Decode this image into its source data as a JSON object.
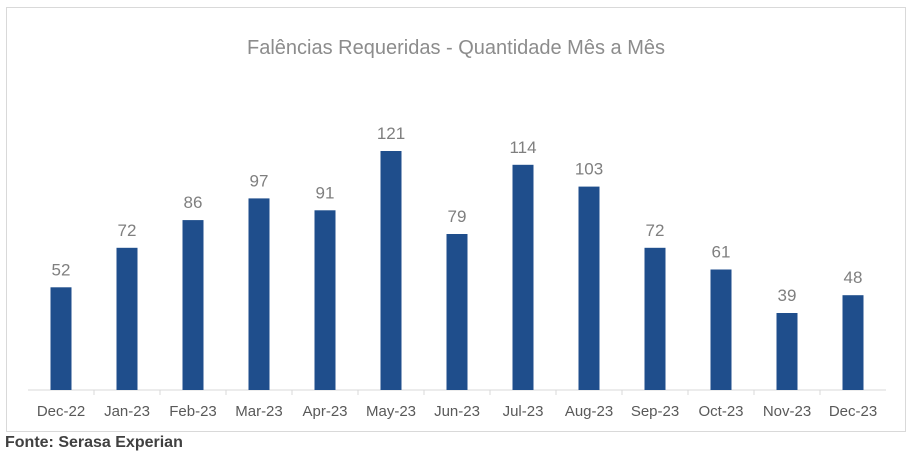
{
  "chart_data": {
    "type": "bar",
    "title": "Falências Requeridas - Quantidade Mês a Mês",
    "categories": [
      "Dec-22",
      "Jan-23",
      "Feb-23",
      "Mar-23",
      "Apr-23",
      "May-23",
      "Jun-23",
      "Jul-23",
      "Aug-23",
      "Sep-23",
      "Oct-23",
      "Nov-23",
      "Dec-23"
    ],
    "values": [
      52,
      72,
      86,
      97,
      91,
      121,
      79,
      114,
      103,
      72,
      61,
      39,
      48
    ],
    "xlabel": "",
    "ylabel": "",
    "ylim": [
      0,
      121
    ],
    "grid": false,
    "legend": "none",
    "bar_color": "#1f4e8c"
  },
  "source": "Fonte: Serasa Experian"
}
